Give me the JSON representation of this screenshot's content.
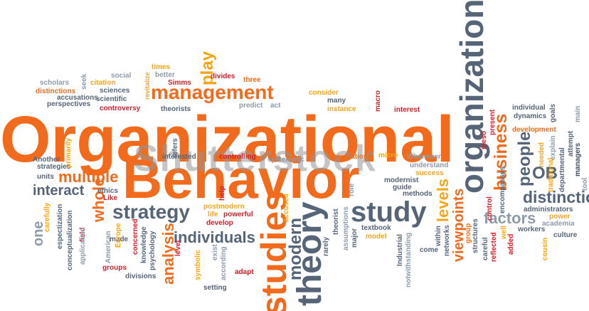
{
  "title": "Organizational",
  "subtitle": "Behavior",
  "watermark": "Shutterstock",
  "colors": {
    "orange": "#f26a1b",
    "amber": "#f7a516",
    "slate": "#556577",
    "gray": "#8e9baa",
    "red": "#d31f2a"
  },
  "words": {
    "management": "management",
    "organizations": "organizations",
    "studies": "studies",
    "theory": "theory",
    "study": "study",
    "strategy": "strategy",
    "business": "business",
    "people": "people",
    "ob": "OB",
    "distinction": "distinction",
    "factors": "factors",
    "multiple": "multiple",
    "interact": "interact",
    "individuals": "individuals",
    "analysis": "analysis",
    "modern": "modern",
    "levels": "levels",
    "viewpoints": "viewpoints",
    "whole": "whole",
    "play": "play",
    "one": "one",
    "scholars": "scholars",
    "distinctions": "distinctions",
    "accusations": "accusations",
    "perspectives": "perspectives",
    "seek": "seek",
    "citation": "citation",
    "social": "social",
    "sciences": "sciences",
    "scientific": "scientific",
    "controversy": "controversy",
    "times": "times",
    "better": "better",
    "revitalize": "revitalize",
    "simms": "Simms",
    "theorists": "theorists",
    "divides": "divides",
    "three": "three",
    "predict": "predict",
    "act": "act",
    "consider": "consider",
    "many": "many",
    "instance": "instance",
    "macro": "macro",
    "interest": "interest",
    "meso": "meso",
    "present": "present",
    "individual": "individual",
    "dynamics": "dynamics",
    "goals": "goals",
    "explain": "explain",
    "development": "development",
    "departmental": "departmental",
    "attempt": "attempt",
    "managers": "managers",
    "main": "main",
    "tool": "tool",
    "needed": "needed",
    "traditional": "traditional",
    "another": "Another",
    "strategies": "strategies",
    "primarily": "primarily",
    "units": "units",
    "refers": "refers",
    "interested": "interested",
    "controlling": "controlling",
    "systematic": "systematic",
    "populations": "populations",
    "micro": "micro",
    "whenever": "Whenever",
    "understand": "understand",
    "success": "success",
    "modernist": "modernist",
    "guide": "guide",
    "methods": "methods",
    "ethics": "ethics",
    "like": "Like",
    "help": "help",
    "postmodern": "postmodern",
    "life": "life",
    "powerful": "powerful",
    "develop": "develop",
    "accused": "accused",
    "role": "role",
    "rarely": "rarely",
    "theorist": "theorist",
    "assumptions": "assumptions",
    "textbook": "textbook",
    "model": "model",
    "major": "major",
    "industrial": "Industrial",
    "notwithstanding": "notwithstanding",
    "come": "come",
    "within": "within",
    "networks": "networks",
    "group": "group",
    "structures": "structures",
    "control": "control",
    "careful": "careful",
    "reflected": "reflected",
    "well": "well",
    "added": "added",
    "encompasses": "encompasses",
    "administrators": "administrators",
    "power": "power",
    "academia": "academia",
    "workers": "workers",
    "culture": "culture",
    "cousin": "cousin",
    "carefully": "carefully",
    "espectization": "espectization",
    "conceptualization": "conceptualization",
    "field": "field",
    "application": "application",
    "made": "made",
    "american": "American",
    "europe": "Europe",
    "concerned": "concerned",
    "knowledge": "knowledge",
    "psychology": "psychology",
    "groups": "groups",
    "divisions": "divisions",
    "level": "level",
    "symbolic": "symbolic",
    "exist": "exist",
    "according": "according",
    "setting": "setting",
    "adapt": "adapt"
  }
}
